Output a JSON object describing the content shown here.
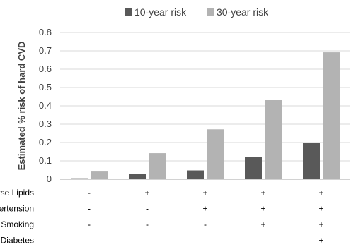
{
  "chart_data": {
    "type": "bar",
    "ylabel": "Estimated % risk of hard CVD",
    "ylim": [
      0,
      0.8
    ],
    "yticks": [
      "0",
      "0.1",
      "0.2",
      "0.3",
      "0.4",
      "0.5",
      "0.6",
      "0.7",
      "0.8"
    ],
    "grid": true,
    "legend_position": "top",
    "series": [
      {
        "name": "10-year risk",
        "color": "#595959",
        "values": [
          0.005,
          0.03,
          0.048,
          0.122,
          0.2
        ]
      },
      {
        "name": "30-year risk",
        "color": "#b3b3b3",
        "values": [
          0.042,
          0.142,
          0.272,
          0.432,
          0.692
        ]
      }
    ],
    "category_table": [
      {
        "label": "Adverse Lipids",
        "marks": [
          "-",
          "+",
          "+",
          "+",
          "+"
        ]
      },
      {
        "label": "Hypertension",
        "marks": [
          "-",
          "-",
          "+",
          "+",
          "+"
        ]
      },
      {
        "label": "Smoking",
        "marks": [
          "-",
          "-",
          "-",
          "+",
          "+"
        ]
      },
      {
        "label": "Diabetes",
        "marks": [
          "-",
          "-",
          "-",
          "-",
          "+"
        ]
      }
    ]
  }
}
